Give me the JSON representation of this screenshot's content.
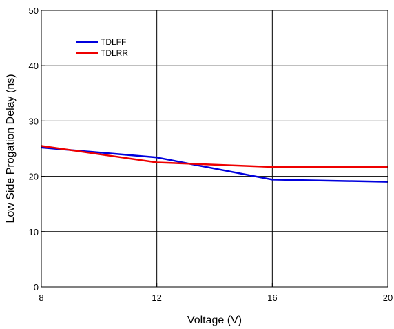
{
  "chart_data": {
    "type": "line",
    "xlabel": "Voltage (V)",
    "ylabel": "Low Side Progation Delay (ns)",
    "xlim": [
      8,
      20
    ],
    "ylim": [
      0,
      50
    ],
    "x_ticks": [
      8,
      12,
      16,
      20
    ],
    "y_ticks": [
      0,
      10,
      20,
      30,
      40,
      50
    ],
    "grid": true,
    "legend_position": "top-left",
    "series": [
      {
        "name": "TDLFF",
        "color": "#0000dd",
        "x": [
          8,
          12,
          16,
          20
        ],
        "y": [
          25.2,
          23.4,
          19.4,
          19.0
        ]
      },
      {
        "name": "TDLRR",
        "color": "#ee0000",
        "x": [
          8,
          12,
          16,
          20
        ],
        "y": [
          25.5,
          22.5,
          21.7,
          21.7
        ]
      }
    ]
  }
}
